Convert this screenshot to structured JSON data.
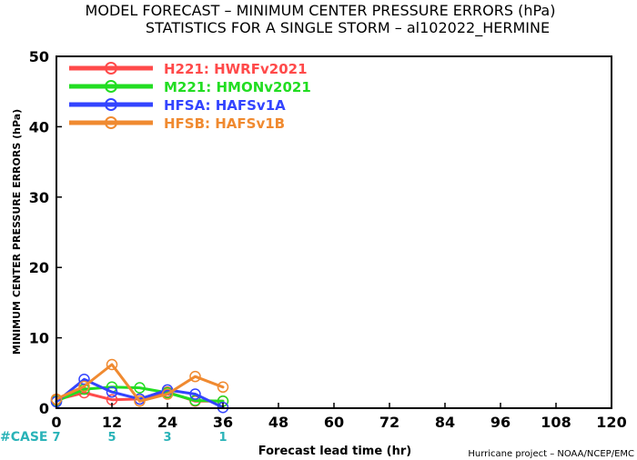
{
  "chart_data": {
    "type": "line",
    "title": "MODEL FORECAST – MINIMUM CENTER PRESSURE ERRORS (hPa)",
    "subtitle": "STATISTICS FOR A SINGLE STORM – al102022_HERMINE",
    "xlabel": "Forecast lead time (hr)",
    "ylabel": "MINIMUM CENTER PRESSURE ERRORS (hPa)",
    "xlim": [
      0,
      120
    ],
    "ylim": [
      0,
      50
    ],
    "x_ticks": [
      0,
      12,
      24,
      36,
      48,
      60,
      72,
      84,
      96,
      108,
      120
    ],
    "y_ticks": [
      0,
      10,
      20,
      30,
      40,
      50
    ],
    "grid": false,
    "legend_position": "top-left",
    "case_label": "#CASE",
    "cases": [
      {
        "x": 0,
        "n": "7"
      },
      {
        "x": 12,
        "n": "5"
      },
      {
        "x": 24,
        "n": "3"
      },
      {
        "x": 36,
        "n": "1"
      }
    ],
    "credit": "Hurricane project – NOAA/NCEP/EMC",
    "series": [
      {
        "code": "H221:",
        "name": "HWRFv2021",
        "color": "#ff4a4a",
        "x": [
          0,
          6,
          12,
          18,
          24,
          30,
          36
        ],
        "y": [
          1.2,
          2.2,
          1.2,
          1.3,
          2.3,
          1.0,
          1.0
        ]
      },
      {
        "code": "M221:",
        "name": "HMONv2021",
        "color": "#22dd22",
        "x": [
          0,
          6,
          12,
          18,
          24,
          30,
          36
        ],
        "y": [
          1.0,
          2.7,
          3.0,
          2.9,
          2.2,
          1.1,
          1.0
        ]
      },
      {
        "code": "HFSA:",
        "name": "HAFSv1A",
        "color": "#3344ff",
        "x": [
          0,
          6,
          12,
          18,
          24,
          30,
          36
        ],
        "y": [
          0.9,
          4.1,
          2.3,
          1.3,
          2.6,
          2.0,
          0.1
        ]
      },
      {
        "code": "HFSB:",
        "name": "HAFSv1B",
        "color": "#f08a30",
        "x": [
          0,
          6,
          12,
          18,
          24,
          30,
          36
        ],
        "y": [
          1.3,
          3.1,
          6.2,
          1.0,
          2.0,
          4.5,
          3.0
        ]
      }
    ]
  }
}
